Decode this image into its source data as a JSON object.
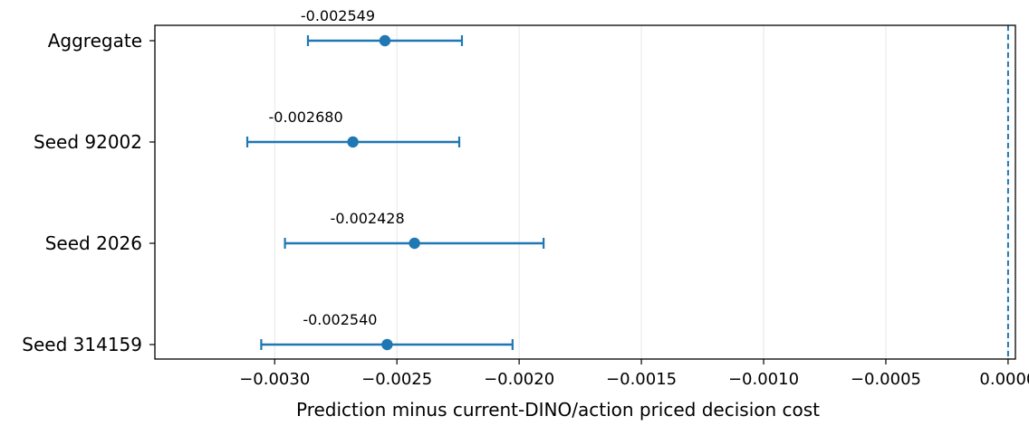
{
  "chart_data": {
    "type": "errorbar",
    "title": "",
    "xlabel": "Prediction minus current-DINO/action priced decision cost",
    "ylabel": "",
    "xlim": [
      -0.00349,
      3e-05
    ],
    "categories": [
      "Aggregate",
      "Seed 92002",
      "Seed 2026",
      "Seed 314159"
    ],
    "values": [
      -0.002549,
      -0.00268,
      -0.002428,
      -0.00254
    ],
    "ci_low": [
      -0.002864,
      -0.003112,
      -0.002958,
      -0.003055
    ],
    "ci_high": [
      -0.002234,
      -0.002245,
      -0.0019,
      -0.002027
    ],
    "data_labels": [
      "-0.002549",
      "-0.002680",
      "-0.002428",
      "-0.002540"
    ],
    "x_ticks": [
      -0.003,
      -0.0025,
      -0.002,
      -0.0015,
      -0.001,
      -0.0005,
      0.0
    ],
    "x_tick_labels": [
      "−0.0030",
      "−0.0025",
      "−0.0020",
      "−0.0015",
      "−0.0010",
      "−0.0005",
      "0.0000"
    ],
    "reference_line": 0.0,
    "grid": "vertical",
    "colors": {
      "series": "#1f77b4",
      "grid": "#e6e6e6",
      "axes": "#000000"
    }
  }
}
